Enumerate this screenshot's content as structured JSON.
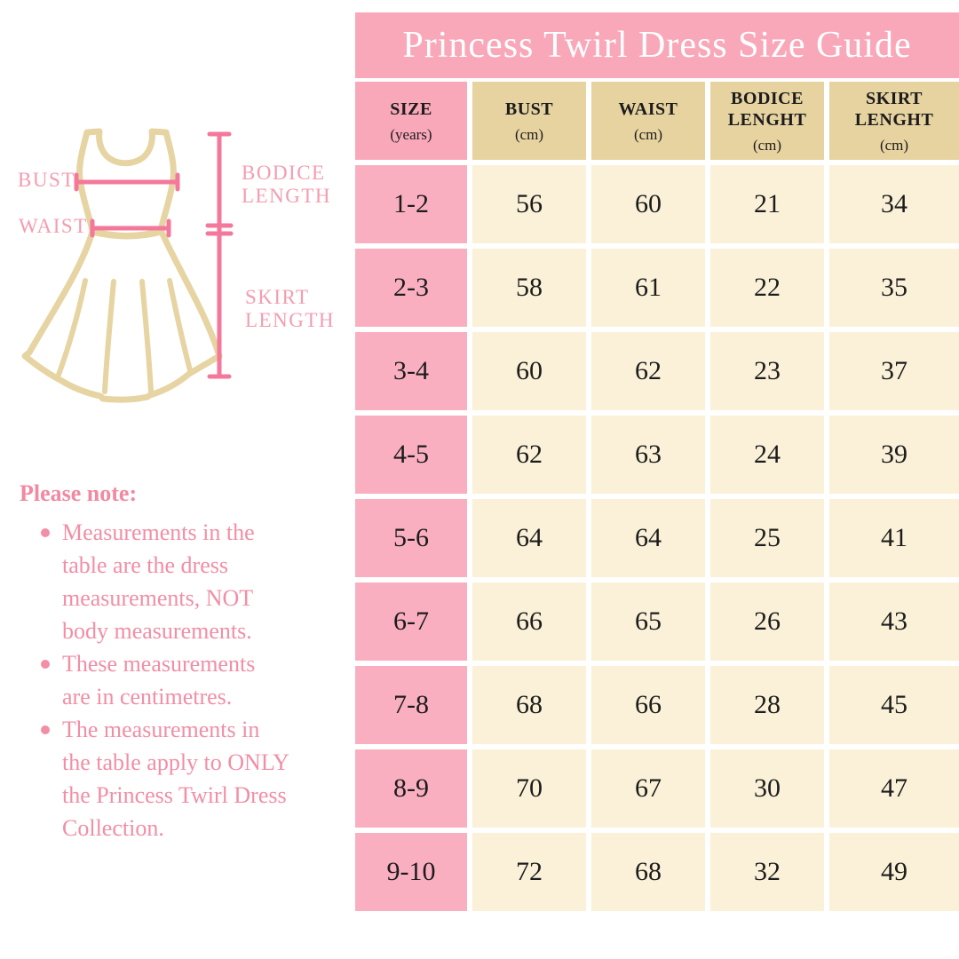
{
  "title": "Princess Twirl Dress Size Guide",
  "colors": {
    "title_bar_pink": "#F9A8BA",
    "size_cell_pink": "#FAAFC1",
    "header_tan": "#E6D3A0",
    "cell_cream": "#FAF1D8",
    "dress_outline_tan": "#E7D4A3",
    "measure_line_pink": "#F4789B",
    "label_pink": "#F49CB0",
    "notes_pink": "#F28EA5",
    "table_text": "#1c1c1c"
  },
  "diagram": {
    "bust_label": "BUST",
    "waist_label": "WAIST",
    "bodice_length_label": "BODICE\nLENGTH",
    "skirt_length_label": "SKIRT\nLENGTH"
  },
  "notes": {
    "heading": "Please note:",
    "items": [
      "Measurements in the\ntable are the dress\nmeasurements, NOT\nbody measurements.",
      "These measurements\nare in centimetres.",
      "The measurements in\nthe table apply to ONLY\nthe Princess Twirl Dress\nCollection."
    ]
  },
  "table": {
    "columns": [
      {
        "label": "SIZE",
        "unit": "(years)"
      },
      {
        "label": "BUST",
        "unit": "(cm)"
      },
      {
        "label": "WAIST",
        "unit": "(cm)"
      },
      {
        "label": "BODICE LENGHT",
        "unit": "(cm)"
      },
      {
        "label": "SKIRT LENGHT",
        "unit": "(cm)"
      }
    ],
    "rows": [
      {
        "size": "1-2",
        "bust": "56",
        "waist": "60",
        "bodice": "21",
        "skirt": "34"
      },
      {
        "size": "2-3",
        "bust": "58",
        "waist": "61",
        "bodice": "22",
        "skirt": "35"
      },
      {
        "size": "3-4",
        "bust": "60",
        "waist": "62",
        "bodice": "23",
        "skirt": "37"
      },
      {
        "size": "4-5",
        "bust": "62",
        "waist": "63",
        "bodice": "24",
        "skirt": "39"
      },
      {
        "size": "5-6",
        "bust": "64",
        "waist": "64",
        "bodice": "25",
        "skirt": "41"
      },
      {
        "size": "6-7",
        "bust": "66",
        "waist": "65",
        "bodice": "26",
        "skirt": "43"
      },
      {
        "size": "7-8",
        "bust": "68",
        "waist": "66",
        "bodice": "28",
        "skirt": "45"
      },
      {
        "size": "8-9",
        "bust": "70",
        "waist": "67",
        "bodice": "30",
        "skirt": "47"
      },
      {
        "size": "9-10",
        "bust": "72",
        "waist": "68",
        "bodice": "32",
        "skirt": "49"
      }
    ]
  }
}
